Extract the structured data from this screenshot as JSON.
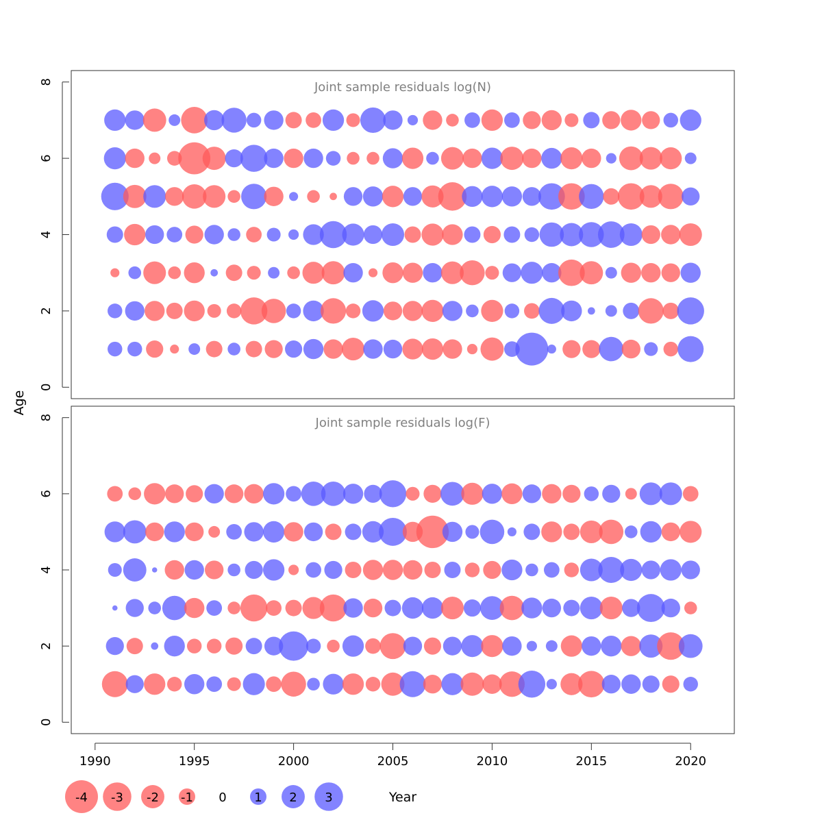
{
  "colors": {
    "negative": "#ff5a5a",
    "positive": "#5a5aff",
    "frame": "#333333",
    "title": "#808080"
  },
  "chart_data": {
    "type": "scatter",
    "subtype": "bubble",
    "xlabel": "Year",
    "ylabel": "Age",
    "xlim": [
      1988.8,
      2022.2
    ],
    "x_ticks": [
      1990,
      1995,
      2000,
      2005,
      2010,
      2015,
      2020
    ],
    "ylim": [
      -0.3,
      8.3
    ],
    "y_ticks": [
      0,
      2,
      4,
      6,
      8
    ],
    "grid": false,
    "years": [
      1991,
      1992,
      1993,
      1994,
      1995,
      1996,
      1997,
      1998,
      1999,
      2000,
      2001,
      2002,
      2003,
      2004,
      2005,
      2006,
      2007,
      2008,
      2009,
      2010,
      2011,
      2012,
      2013,
      2014,
      2015,
      2016,
      2017,
      2018,
      2019,
      2020
    ],
    "legend": {
      "placement": "bottom-left",
      "values": [
        -4,
        -3,
        -2,
        -1,
        0,
        1,
        2,
        3
      ],
      "labels": [
        "-4",
        "-3",
        "-2",
        "-1",
        "0",
        "1",
        "2",
        "3"
      ]
    },
    "panels": [
      {
        "title": "Joint sample residuals log(N)",
        "ages": [
          1,
          2,
          3,
          4,
          5,
          6,
          7
        ],
        "residuals": [
          [
            0.8,
            0.8,
            -1.1,
            -0.3,
            0.5,
            -1.0,
            0.6,
            -1.0,
            -1.2,
            1.1,
            1.5,
            -1.4,
            -1.9,
            1.4,
            1.3,
            -1.6,
            -1.7,
            -1.4,
            -0.4,
            -2.0,
            0.9,
            4.0,
            0.3,
            -1.2,
            -1.2,
            2.2,
            -1.3,
            0.7,
            -0.8,
            2.5
          ],
          [
            0.8,
            1.4,
            -1.5,
            -1.0,
            -1.6,
            -0.7,
            -0.8,
            -2.7,
            -2.2,
            0.8,
            1.6,
            -2.4,
            -0.8,
            1.7,
            -1.3,
            -1.5,
            -1.8,
            1.5,
            0.6,
            -1.8,
            0.8,
            -0.9,
            2.5,
            1.6,
            0.2,
            0.5,
            1.0,
            -2.4,
            -1.0,
            2.7
          ],
          [
            -0.3,
            0.6,
            -1.9,
            -0.6,
            -1.6,
            0.2,
            -1.0,
            -0.7,
            0.5,
            -0.6,
            -1.8,
            -2.0,
            1.4,
            -0.3,
            -1.6,
            -1.5,
            1.4,
            -1.9,
            -2.3,
            -0.7,
            1.3,
            1.8,
            1.4,
            -2.6,
            -2.0,
            0.5,
            -1.5,
            -1.4,
            -1.3,
            1.5
          ],
          [
            1.0,
            -1.7,
            1.3,
            0.9,
            -1.2,
            1.4,
            0.6,
            -0.9,
            0.7,
            0.4,
            1.6,
            2.7,
            1.8,
            1.3,
            1.9,
            -1.0,
            -1.8,
            -1.6,
            1.0,
            -1.1,
            1.0,
            0.8,
            2.2,
            2.0,
            2.3,
            2.6,
            1.9,
            -1.3,
            -1.4,
            -1.9
          ],
          [
            2.8,
            -2.0,
            1.9,
            -1.3,
            -2.2,
            -1.9,
            -0.6,
            2.4,
            -1.4,
            0.3,
            -0.6,
            -0.2,
            1.3,
            1.5,
            -1.7,
            1.3,
            -1.8,
            -3.0,
            1.6,
            1.7,
            1.5,
            1.3,
            2.6,
            -2.6,
            2.3,
            -1.0,
            -2.6,
            -1.9,
            -2.4,
            1.2
          ],
          [
            1.8,
            -1.4,
            -0.5,
            -0.8,
            -3.8,
            -2.0,
            1.2,
            2.7,
            1.4,
            -1.4,
            1.4,
            0.8,
            -0.6,
            -0.6,
            1.5,
            -1.7,
            0.6,
            -1.9,
            -1.4,
            1.7,
            -2.0,
            -1.4,
            1.6,
            -1.8,
            -1.4,
            0.4,
            -2.1,
            -1.9,
            -1.8,
            0.5
          ],
          [
            1.7,
            1.4,
            -2.0,
            0.5,
            -2.6,
            1.5,
            2.3,
            0.8,
            1.4,
            -1.0,
            -0.9,
            1.7,
            -0.7,
            2.4,
            1.4,
            0.4,
            -1.4,
            -0.6,
            0.9,
            -1.7,
            0.9,
            -1.2,
            -1.5,
            -0.7,
            1.0,
            -1.2,
            -1.6,
            -1.2,
            0.8,
            1.7
          ]
        ]
      },
      {
        "title": "Joint sample residuals log(F)",
        "ages": [
          1,
          2,
          3,
          4,
          5,
          6
        ],
        "residuals": [
          [
            -2.5,
            1.2,
            -1.7,
            -0.8,
            1.5,
            0.9,
            -0.7,
            1.8,
            -0.9,
            -2.3,
            0.6,
            1.6,
            -1.7,
            -0.8,
            -2.0,
            2.5,
            -1.3,
            1.8,
            -2.0,
            -1.4,
            -2.4,
            2.7,
            0.4,
            -1.8,
            -2.6,
            1.3,
            1.4,
            1.1,
            -1.1,
            0.8
          ],
          [
            1.2,
            -1.0,
            0.2,
            1.6,
            -0.8,
            -0.8,
            -1.1,
            1.0,
            1.3,
            3.2,
            0.8,
            -0.6,
            1.7,
            -0.9,
            -2.5,
            1.3,
            -1.1,
            1.3,
            1.8,
            -1.8,
            1.4,
            0.4,
            0.5,
            -1.7,
            1.4,
            1.6,
            -1.5,
            2.0,
            -2.8,
            2.1
          ],
          [
            0.1,
            1.2,
            0.6,
            2.2,
            -1.5,
            0.9,
            -0.6,
            -2.7,
            -0.9,
            -1.0,
            -1.8,
            -2.7,
            1.4,
            -1.3,
            1.0,
            1.7,
            1.7,
            -1.9,
            1.1,
            2.1,
            -2.2,
            1.6,
            1.3,
            1.0,
            1.9,
            -1.9,
            1.2,
            2.9,
            1.3,
            -0.6
          ],
          [
            0.7,
            2.0,
            0.1,
            -1.4,
            1.4,
            -1.3,
            0.6,
            1.2,
            1.7,
            -0.4,
            0.9,
            1.2,
            -1.0,
            -1.5,
            -1.5,
            -1.4,
            -1.0,
            1.0,
            -0.8,
            -1.2,
            1.6,
            0.6,
            0.9,
            -0.8,
            1.9,
            2.5,
            1.8,
            1.3,
            1.7,
            1.3
          ],
          [
            1.6,
            2.0,
            -1.3,
            1.6,
            -1.3,
            -0.5,
            0.9,
            1.4,
            1.7,
            -1.4,
            1.3,
            -1.0,
            1.0,
            1.7,
            2.9,
            -1.5,
            -3.9,
            1.5,
            0.7,
            2.2,
            0.3,
            1.0,
            -1.6,
            -1.0,
            -1.9,
            -2.2,
            0.6,
            1.7,
            -1.3,
            -1.8
          ],
          [
            -0.9,
            -0.6,
            -1.7,
            -1.3,
            -1.1,
            1.4,
            -1.3,
            -1.4,
            1.7,
            0.9,
            2.2,
            2.2,
            1.5,
            1.2,
            2.7,
            -0.7,
            -1.2,
            2.1,
            -1.8,
            1.5,
            -1.6,
            1.3,
            -1.4,
            -1.2,
            0.8,
            1.2,
            -0.5,
            1.9,
            1.9,
            -0.9
          ]
        ]
      }
    ]
  }
}
